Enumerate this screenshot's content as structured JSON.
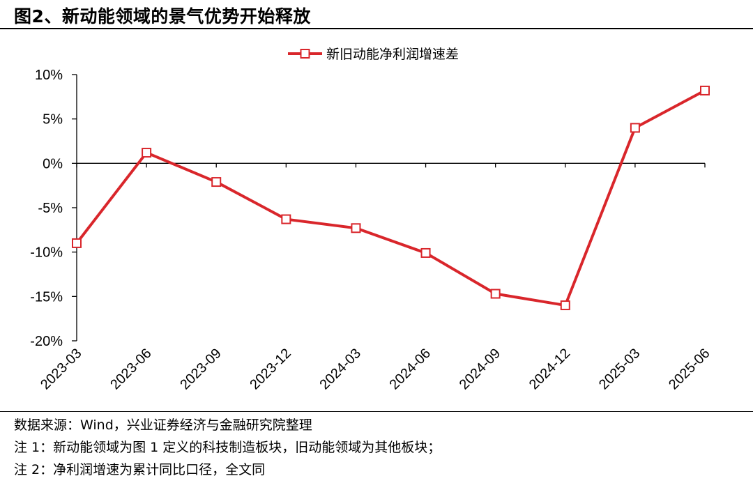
{
  "figure": {
    "title": "图2、新动能领域的景气优势开始释放"
  },
  "chart_data": {
    "type": "line",
    "categories": [
      "2023-03",
      "2023-06",
      "2023-09",
      "2023-12",
      "2024-03",
      "2024-06",
      "2024-09",
      "2024-12",
      "2025-03",
      "2025-06"
    ],
    "series": [
      {
        "name": "新旧动能净利润增速差",
        "values": [
          -9.0,
          1.2,
          -2.1,
          -6.3,
          -7.3,
          -10.1,
          -14.7,
          -16.0,
          4.0,
          8.2
        ],
        "color": "#d9262b",
        "marker": "square"
      }
    ],
    "ylim": [
      -20,
      10
    ],
    "yticks": [
      10,
      5,
      0,
      -5,
      -10,
      -15,
      -20
    ],
    "ytick_labels": [
      "10%",
      "5%",
      "0%",
      "-5%",
      "-10%",
      "-15%",
      "-20%"
    ],
    "grid": false,
    "legend": "top-center",
    "xlabel": "",
    "ylabel": ""
  },
  "notes": [
    "数据来源：Wind，兴业证券经济与金融研究院整理",
    "注 1：新动能领域为图 1 定义的科技制造板块，旧动能领域为其他板块；",
    "注 2：净利润增速为累计同比口径，全文同"
  ]
}
